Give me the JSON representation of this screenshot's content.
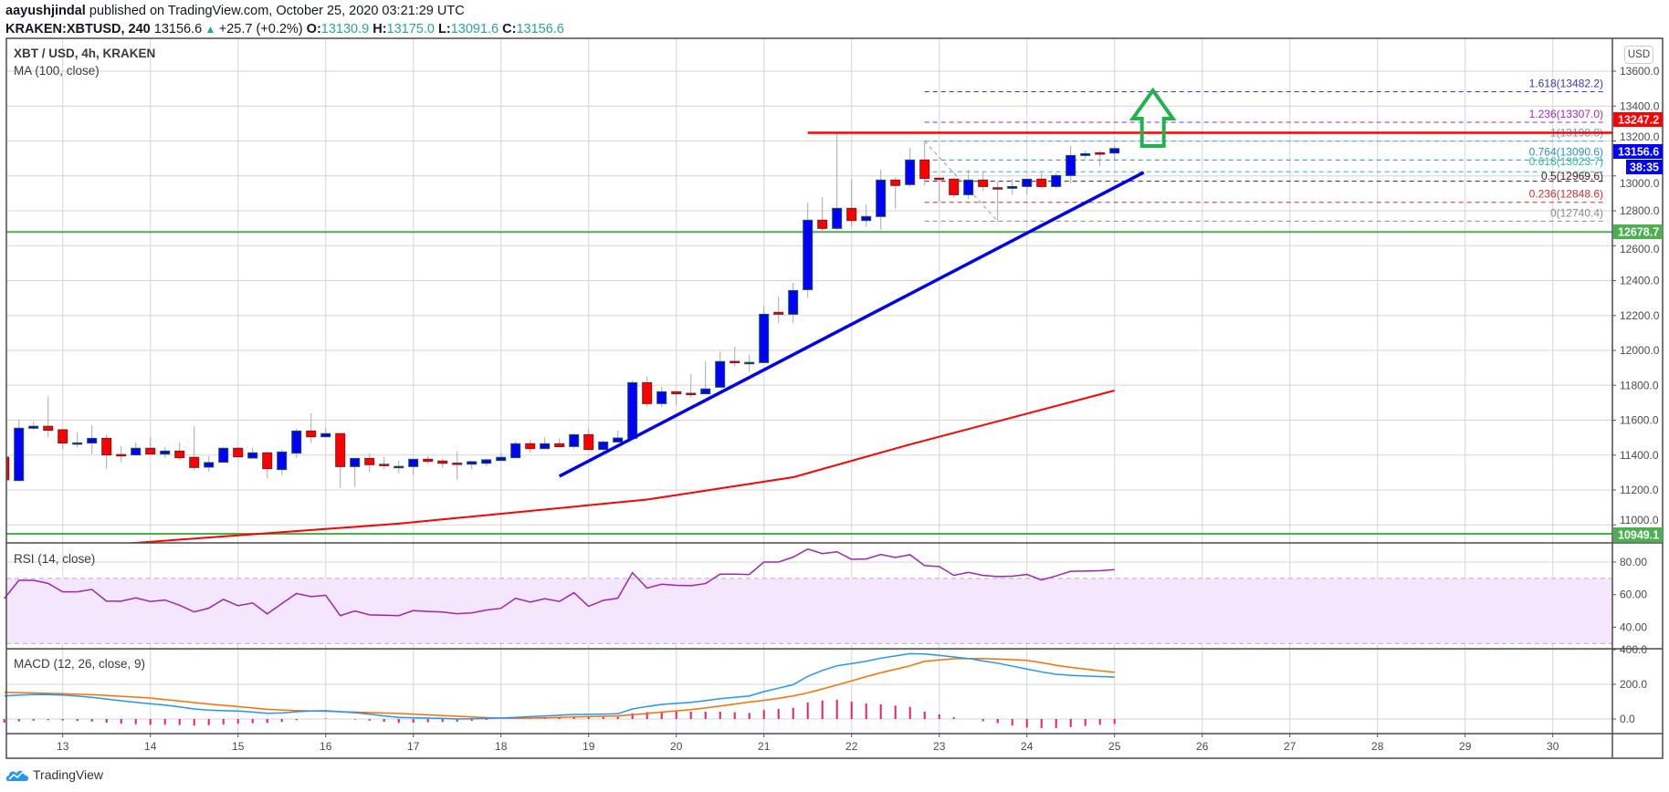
{
  "header": {
    "publisher": "aayushjindal",
    "published_text": "published on TradingView.com, October 25, 2020 03:21:29 UTC",
    "symbol": "KRAKEN:XBTUSD, 240",
    "last": "13156.6",
    "change_icon": "triangle-up-icon",
    "change": "+25.7 (+0.2%)",
    "o_label": "O:",
    "o": "13130.9",
    "h_label": "H:",
    "h": "13175.0",
    "l_label": "L:",
    "l": "13091.6",
    "c_label": "C:",
    "c": "13156.6"
  },
  "legend": {
    "title": "XBT / USD, 4h, KRAKEN",
    "ma": "MA (100, close)"
  },
  "currency_button": "USD",
  "footer": {
    "brand": "TradingView",
    "logo_icon": "tradingview-logo-icon"
  },
  "colors": {
    "up": "#0000ff",
    "up_border": "#1f5a2c",
    "down": "#ff0000",
    "down_border": "#7a1c1c",
    "wick": "#a8a8a8",
    "ma": "#ff0000",
    "trendline": "#0000ee",
    "resistance": "#ff0000",
    "support": "#4caf50",
    "arrow": "#22b14c",
    "rsi": "#9c27b0",
    "rsi_band": "#f3e6fd",
    "macd": "#2196f3",
    "signal": "#ff6d00",
    "histogram": "#e91e63",
    "grid": "#d6d6d6",
    "axis_text": "#4a4a4a"
  },
  "chart_data": [
    {
      "type": "candlestick",
      "title": "XBT / USD, 4h, KRAKEN",
      "ylabel": "USD",
      "ylim": [
        10897,
        13788
      ],
      "xlim": [
        "2020-10-12T08:30",
        "2020-10-30T16:00"
      ],
      "grid": true,
      "y_ticks": [
        "11000.0",
        "11200.0",
        "11400.0",
        "11600.0",
        "11800.0",
        "12000.0",
        "12200.0",
        "12400.0",
        "12600.0",
        "12800.0",
        "13000.0",
        "13200.0",
        "13400.0",
        "13600.0"
      ],
      "x_ticks": [
        "13",
        "14",
        "15",
        "16",
        "17",
        "18",
        "19",
        "20",
        "21",
        "22",
        "23",
        "24",
        "25",
        "26",
        "27",
        "28",
        "29",
        "30"
      ],
      "candles_columns": [
        "time",
        "open",
        "high",
        "low",
        "close"
      ],
      "candles": [
        [
          "2020-10-12T08:00",
          11388,
          11400,
          11250,
          11259
        ],
        [
          "2020-10-12T12:00",
          11254,
          11603,
          11250,
          11554
        ],
        [
          "2020-10-12T16:00",
          11554,
          11592,
          11545,
          11565
        ],
        [
          "2020-10-12T20:00",
          11565,
          11734,
          11503,
          11542
        ],
        [
          "2020-10-13T00:00",
          11545,
          11550,
          11432,
          11469
        ],
        [
          "2020-10-13T04:00",
          11469,
          11533,
          11442,
          11470
        ],
        [
          "2020-10-13T08:00",
          11469,
          11571,
          11406,
          11496
        ],
        [
          "2020-10-13T12:00",
          11496,
          11519,
          11322,
          11401
        ],
        [
          "2020-10-13T16:00",
          11403,
          11451,
          11359,
          11401
        ],
        [
          "2020-10-13T20:00",
          11401,
          11472,
          11401,
          11439
        ],
        [
          "2020-10-14T00:00",
          11439,
          11503,
          11406,
          11406
        ],
        [
          "2020-10-14T04:00",
          11406,
          11446,
          11385,
          11423
        ],
        [
          "2020-10-14T08:00",
          11423,
          11472,
          11373,
          11385
        ],
        [
          "2020-10-14T12:00",
          11387,
          11566,
          11312,
          11329
        ],
        [
          "2020-10-14T16:00",
          11331,
          11394,
          11305,
          11357
        ],
        [
          "2020-10-14T20:00",
          11359,
          11446,
          11359,
          11439
        ],
        [
          "2020-10-15T00:00",
          11439,
          11446,
          11390,
          11390
        ],
        [
          "2020-10-15T04:00",
          11383,
          11441,
          11380,
          11413
        ],
        [
          "2020-10-15T08:00",
          11413,
          11419,
          11265,
          11322
        ],
        [
          "2020-10-15T12:00",
          11317,
          11430,
          11286,
          11418
        ],
        [
          "2020-10-15T16:00",
          11411,
          11551,
          11383,
          11538
        ],
        [
          "2020-10-15T20:00",
          11538,
          11639,
          11469,
          11505
        ],
        [
          "2020-10-16T00:00",
          11505,
          11554,
          11505,
          11523
        ],
        [
          "2020-10-16T04:00",
          11523,
          11523,
          11211,
          11334
        ],
        [
          "2020-10-16T08:00",
          11334,
          11381,
          11218,
          11381
        ],
        [
          "2020-10-16T12:00",
          11381,
          11408,
          11301,
          11345
        ],
        [
          "2020-10-16T16:00",
          11347,
          11389,
          11317,
          11340
        ],
        [
          "2020-10-16T20:00",
          11334,
          11368,
          11296,
          11335
        ],
        [
          "2020-10-17T00:00",
          11334,
          11376,
          11285,
          11376
        ],
        [
          "2020-10-17T04:00",
          11376,
          11393,
          11348,
          11364
        ],
        [
          "2020-10-17T08:00",
          11366,
          11380,
          11327,
          11353
        ],
        [
          "2020-10-17T12:00",
          11354,
          11420,
          11259,
          11352
        ],
        [
          "2020-10-17T16:00",
          11348,
          11366,
          11317,
          11362
        ],
        [
          "2020-10-17T20:00",
          11353,
          11380,
          11337,
          11373
        ],
        [
          "2020-10-18T00:00",
          11369,
          11414,
          11369,
          11387
        ],
        [
          "2020-10-18T04:00",
          11385,
          11477,
          11385,
          11465
        ],
        [
          "2020-10-18T08:00",
          11465,
          11489,
          11414,
          11437
        ],
        [
          "2020-10-18T12:00",
          11437,
          11503,
          11437,
          11465
        ],
        [
          "2020-10-18T16:00",
          11465,
          11495,
          11448,
          11448
        ],
        [
          "2020-10-18T20:00",
          11449,
          11524,
          11437,
          11517
        ],
        [
          "2020-10-19T00:00",
          11517,
          11550,
          11432,
          11432
        ],
        [
          "2020-10-19T04:00",
          11432,
          11484,
          11420,
          11475
        ],
        [
          "2020-10-19T08:00",
          11475,
          11540,
          11475,
          11498
        ],
        [
          "2020-10-19T12:00",
          11496,
          11829,
          11496,
          11815
        ],
        [
          "2020-10-19T16:00",
          11815,
          11850,
          11676,
          11695
        ],
        [
          "2020-10-19T20:00",
          11695,
          11791,
          11676,
          11763
        ],
        [
          "2020-10-20T00:00",
          11763,
          11763,
          11685,
          11751
        ],
        [
          "2020-10-20T04:00",
          11754,
          11864,
          11730,
          11752
        ],
        [
          "2020-10-20T08:00",
          11751,
          11939,
          11751,
          11779
        ],
        [
          "2020-10-20T12:00",
          11789,
          11995,
          11789,
          11936
        ],
        [
          "2020-10-20T16:00",
          11937,
          12021,
          11908,
          11935
        ],
        [
          "2020-10-20T20:00",
          11930,
          11976,
          11876,
          11931
        ],
        [
          "2020-10-21T00:00",
          11930,
          12256,
          11930,
          12207
        ],
        [
          "2020-10-21T04:00",
          12218,
          12308,
          12155,
          12207
        ],
        [
          "2020-10-21T08:00",
          12207,
          12387,
          12155,
          12343
        ],
        [
          "2020-10-21T12:00",
          12348,
          12847,
          12300,
          12746
        ],
        [
          "2020-10-21T16:00",
          12746,
          12878,
          12671,
          12699
        ],
        [
          "2020-10-21T20:00",
          12699,
          13251,
          12690,
          12814
        ],
        [
          "2020-10-22T00:00",
          12814,
          12979,
          12707,
          12744
        ],
        [
          "2020-10-22T04:00",
          12744,
          12837,
          12707,
          12767
        ],
        [
          "2020-10-22T08:00",
          12767,
          13035,
          12690,
          12976
        ],
        [
          "2020-10-22T12:00",
          12976,
          12992,
          12812,
          12945
        ],
        [
          "2020-10-22T16:00",
          12950,
          13161,
          12936,
          13091
        ],
        [
          "2020-10-22T20:00",
          13091,
          13202,
          12945,
          12985
        ],
        [
          "2020-10-23T00:00",
          12987,
          12990,
          12849,
          12984
        ],
        [
          "2020-10-23T04:00",
          12981,
          12990,
          12875,
          12892
        ],
        [
          "2020-10-23T08:00",
          12892,
          13035,
          12866,
          12976
        ],
        [
          "2020-10-23T12:00",
          12976,
          13023,
          12913,
          12939
        ],
        [
          "2020-10-23T16:00",
          12932,
          12968,
          12735,
          12930
        ],
        [
          "2020-10-23T20:00",
          12929,
          12985,
          12892,
          12939
        ],
        [
          "2020-10-24T00:00",
          12939,
          12981,
          12892,
          12981
        ],
        [
          "2020-10-24T04:00",
          12981,
          13014,
          12928,
          12939
        ],
        [
          "2020-10-24T08:00",
          12939,
          13014,
          12928,
          13002
        ],
        [
          "2020-10-24T12:00",
          13002,
          13171,
          12958,
          13117
        ],
        [
          "2020-10-24T16:00",
          13117,
          13145,
          13100,
          13127
        ],
        [
          "2020-10-24T20:00",
          13132,
          13145,
          13053,
          13130
        ],
        [
          "2020-10-25T00:00",
          13130.9,
          13175.0,
          13091.6,
          13156.6
        ]
      ],
      "ma_100": [
        [
          "2020-10-12T08:00",
          10843
        ],
        [
          "2020-10-13T20:00",
          10897
        ],
        [
          "2020-10-16T20:00",
          11007
        ],
        [
          "2020-10-19T16:00",
          11145
        ],
        [
          "2020-10-21T08:00",
          11273
        ],
        [
          "2020-10-22T16:00",
          11461
        ],
        [
          "2020-10-25T00:00",
          11770
        ]
      ],
      "trendline": {
        "start": [
          "2020-10-18T16:00",
          11279
        ],
        "end": [
          "2020-10-25T08:00",
          13020
        ]
      },
      "resistance": {
        "start": "2020-10-21T12:00",
        "value": 13247.2
      },
      "support_levels": [
        12678.7,
        10949.1
      ],
      "arrow_up": {
        "time": "2020-10-25T10:30",
        "from": 13171,
        "to": 13490
      },
      "fibonacci": {
        "high": [
          "2020-10-22T20:00",
          13198.8
        ],
        "low": [
          "2020-10-23T16:00",
          12740.4
        ],
        "levels": [
          {
            "label": "1.618(13482.2)",
            "value": 13482.2,
            "color": "#3535c4"
          },
          {
            "label": "1.236(13307.0)",
            "value": 13307.0,
            "color": "#9c27d0"
          },
          {
            "label": "1(13198.8)",
            "value": 13198.8,
            "color": "#4aa3dc"
          },
          {
            "label": "0.764(13090.6)",
            "value": 13090.6,
            "color": "#2a8fcf"
          },
          {
            "label": "0.618(13023.7)",
            "value": 13023.7,
            "color": "#22c38a"
          },
          {
            "label": "0.5(12969.6)",
            "value": 12969.6,
            "color": "#4a1a2c"
          },
          {
            "label": "0.236(12848.6)",
            "value": 12848.6,
            "color": "#d32f2f"
          },
          {
            "label": "0(12740.4)",
            "value": 12740.4,
            "color": "#8a8a8a"
          }
        ]
      },
      "price_tags": [
        {
          "text": "13247.2",
          "value": 13247.2,
          "color": "#ff0000"
        },
        {
          "text": "13156.6",
          "value": 13156.6,
          "color": "#0000ff"
        },
        {
          "text": "12678.7",
          "value": 12678.7,
          "color": "#4caf50"
        },
        {
          "text": "10949.1",
          "value": 10949.1,
          "color": "#4caf50"
        }
      ],
      "countdown": "38:35"
    },
    {
      "type": "line",
      "title": "RSI (14, close)",
      "ylim": [
        26.8,
        91.8
      ],
      "y_ticks": [
        "80.00",
        "60.00",
        "40.00"
      ],
      "band": [
        30,
        70
      ],
      "values": [
        57.6,
        68.8,
        68.8,
        66.9,
        61.7,
        61.7,
        63.2,
        56,
        56,
        58,
        55.8,
        56.7,
        53.5,
        49.4,
        51.7,
        57.1,
        53.2,
        54.9,
        48.2,
        54.5,
        60.7,
        58.8,
        59.6,
        47.1,
        50,
        47.6,
        47.4,
        47.1,
        50.2,
        49.7,
        49.3,
        48.3,
        48.8,
        50.5,
        51.6,
        57.8,
        55.4,
        57.5,
        55.8,
        61.2,
        52.8,
        56.5,
        57.8,
        73.5,
        64,
        66.4,
        65.7,
        65.5,
        66.8,
        72.6,
        72.6,
        72.4,
        80,
        80,
        83,
        88,
        85.2,
        86.3,
        81.7,
        81.9,
        84.7,
        82.8,
        84.5,
        77.8,
        77.3,
        71.8,
        73.7,
        71.8,
        71.1,
        71.3,
        72.4,
        69,
        71.5,
        74.3,
        74.5,
        74.7,
        75.4
      ]
    },
    {
      "type": "line",
      "title": "MACD (12, 26, close, 9)",
      "ylim": [
        -84,
        405
      ],
      "y_ticks": [
        "400.0",
        "200.0",
        "0.0"
      ],
      "macd": [
        133,
        138,
        141,
        141,
        138,
        132,
        125,
        115,
        105,
        96,
        88,
        80,
        70,
        58,
        51,
        48,
        46,
        40,
        33,
        35,
        42,
        46,
        48,
        42,
        36,
        28,
        18,
        9,
        7,
        5,
        3,
        0,
        1,
        3,
        6,
        9,
        14,
        18,
        22,
        26,
        27,
        28,
        30,
        58,
        72,
        84,
        90,
        96,
        106,
        117,
        125,
        133,
        158,
        178,
        198,
        246,
        280,
        307,
        320,
        333,
        351,
        364,
        377,
        375,
        367,
        358,
        349,
        335,
        322,
        305,
        288,
        272,
        258,
        252,
        248,
        245,
        242
      ],
      "signal": [
        154,
        152,
        150,
        148,
        146,
        143,
        140,
        136,
        131,
        126,
        121,
        112,
        104,
        95,
        86,
        79,
        72,
        64,
        56,
        52,
        49,
        47,
        45,
        42,
        40,
        37,
        34,
        32,
        28,
        24,
        20,
        16,
        12,
        8,
        5,
        4,
        5,
        7,
        9,
        12,
        14,
        16,
        18,
        25,
        32,
        40,
        47,
        54,
        64,
        75,
        86,
        98,
        107,
        120,
        133,
        151,
        173,
        196,
        220,
        244,
        267,
        287,
        307,
        333,
        340,
        348,
        349,
        348,
        346,
        342,
        338,
        325,
        310,
        298,
        288,
        278,
        270
      ]
    }
  ]
}
